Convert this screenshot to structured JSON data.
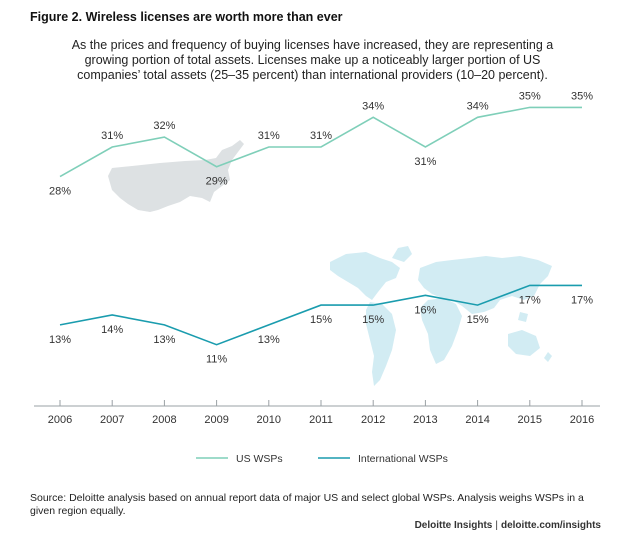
{
  "title": "Figure 2. Wireless licenses are worth more than ever",
  "subtitle": "As the prices and frequency of buying licenses have increased, they are representing a growing portion of total assets. Licenses make up a noticeably larger portion of US companies’ total assets (25–35 percent) than international providers (10–20 percent).",
  "chart_data": {
    "type": "line",
    "x": [
      "2006",
      "2007",
      "2008",
      "2009",
      "2010",
      "2011",
      "2012",
      "2013",
      "2014",
      "2015",
      "2016"
    ],
    "ylim": [
      5,
      40
    ],
    "grid": false,
    "legend_position": "bottom",
    "series": [
      {
        "name": "US WSPs",
        "color": "#7fcfb9",
        "values": [
          28,
          31,
          32,
          29,
          31,
          31,
          34,
          31,
          34,
          35,
          35
        ],
        "labels": [
          "28%",
          "31%",
          "32%",
          "29%",
          "31%",
          "31%",
          "34%",
          "31%",
          "34%",
          "35%",
          "35%"
        ]
      },
      {
        "name": "International WSPs",
        "color": "#1a9cae",
        "values": [
          13,
          14,
          13,
          11,
          13,
          15,
          15,
          16,
          15,
          17,
          17
        ],
        "labels": [
          "13%",
          "14%",
          "13%",
          "11%",
          "13%",
          "15%",
          "15%",
          "16%",
          "15%",
          "17%",
          "17%"
        ]
      }
    ]
  },
  "colors": {
    "us_map": "#dde1e3",
    "world_map": "#d2ecf3",
    "axis": "#9aa0a4"
  },
  "footnote": "Source: Deloitte analysis based on annual report data of major US and select global WSPs. Analysis weighs WSPs in a given region equally.",
  "credit": {
    "brand": "Deloitte Insights",
    "separator": "|",
    "site": "deloitte.com/insights"
  }
}
